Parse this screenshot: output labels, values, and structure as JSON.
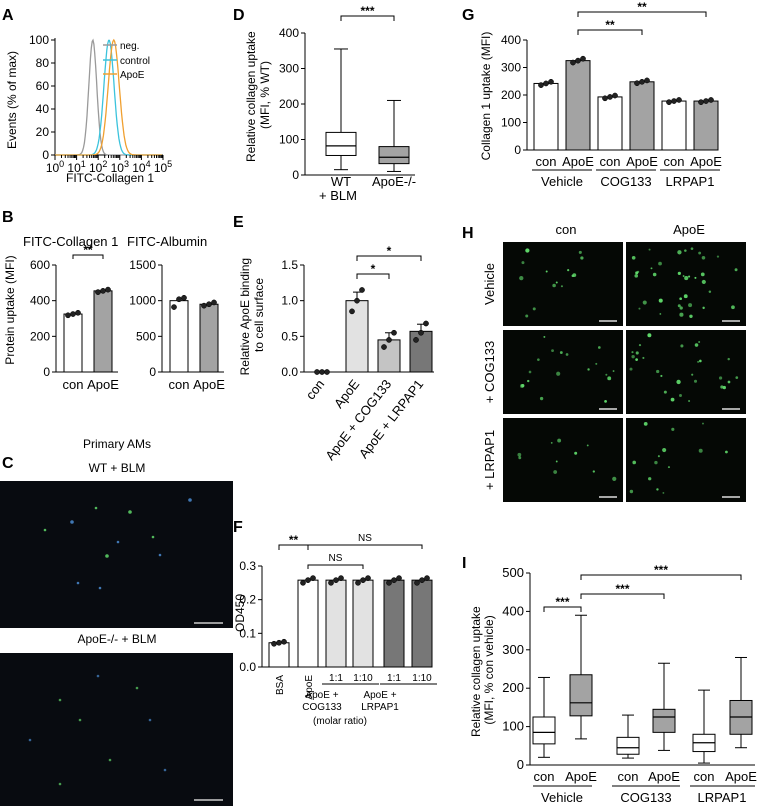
{
  "chart_data": [
    {
      "panel": "A",
      "type": "line",
      "xlabel": "FITC-Collagen 1",
      "ylabel": "Events (% of max)",
      "x_scale": "log",
      "x_ticks": [
        "10^0",
        "10^1",
        "10^2",
        "10^3",
        "10^4",
        "10^5"
      ],
      "y_ticks": [
        0,
        20,
        40,
        60,
        80,
        100
      ],
      "legend": [
        "neg.",
        "control",
        "ApoE"
      ],
      "series": [
        {
          "name": "neg.",
          "color": "#9a9a9a",
          "peak_log10": 1.75,
          "width": 0.26
        },
        {
          "name": "control",
          "color": "#3cc3dc",
          "peak_log10": 2.5,
          "width": 0.33
        },
        {
          "name": "ApoE",
          "color": "#f0a030",
          "peak_log10": 2.72,
          "width": 0.36
        }
      ]
    },
    {
      "panel": "B",
      "type": "bar",
      "ylabel": "Protein uptake (MFI)",
      "subcharts": [
        {
          "title": "FITC-Collagen 1",
          "categories": [
            "con",
            "ApoE"
          ],
          "values": [
            325,
            455
          ],
          "points": [
            [
              318,
              325,
              332
            ],
            [
              448,
              455,
              462
            ]
          ],
          "ylim": [
            0,
            600
          ],
          "y_ticks": [
            0,
            200,
            400,
            600
          ],
          "significance": [
            {
              "pair": [
                0,
                1
              ],
              "label": "**"
            }
          ]
        },
        {
          "title": "FITC-Albumin",
          "categories": [
            "con",
            "ApoE"
          ],
          "values": [
            1000,
            950
          ],
          "points": [
            [
              910,
              1020,
              1040
            ],
            [
              930,
              950,
              975
            ]
          ],
          "ylim": [
            0,
            1500
          ],
          "y_ticks": [
            0,
            500,
            1000,
            1500
          ]
        }
      ]
    },
    {
      "panel": "C",
      "type": "image",
      "title": "Primary AMs",
      "images": [
        "WT + BLM",
        "ApoE-/- + BLM"
      ]
    },
    {
      "panel": "D",
      "type": "box",
      "ylabel": "Relative collagen uptake (MFI, % WT)",
      "categories": [
        "WT",
        "ApoE-/-"
      ],
      "xlabel": "+ BLM",
      "boxes": [
        {
          "min": 15,
          "q1": 55,
          "median": 82,
          "q3": 120,
          "max": 355
        },
        {
          "min": 10,
          "q1": 32,
          "median": 50,
          "q3": 80,
          "max": 210
        }
      ],
      "ylim": [
        0,
        400
      ],
      "y_ticks": [
        0,
        100,
        200,
        300,
        400
      ],
      "significance": [
        {
          "pair": [
            0,
            1
          ],
          "label": "***"
        }
      ]
    },
    {
      "panel": "E",
      "type": "bar",
      "ylabel": "Relative ApoE binding to cell surface",
      "categories": [
        "con",
        "ApoE",
        "ApoE + COG133",
        "ApoE + LRPAP1"
      ],
      "values": [
        0.0,
        1.0,
        0.45,
        0.57
      ],
      "errors": [
        0.0,
        0.12,
        0.1,
        0.1
      ],
      "points": [
        [
          0,
          0,
          0
        ],
        [
          0.85,
          1.0,
          1.15
        ],
        [
          0.35,
          0.45,
          0.55
        ],
        [
          0.45,
          0.55,
          0.68
        ]
      ],
      "ylim": [
        0,
        1.5
      ],
      "y_ticks": [
        "0.0",
        "0.5",
        "1.0",
        "1.5"
      ],
      "significance": [
        {
          "pair": [
            1,
            2
          ],
          "label": "*"
        },
        {
          "pair": [
            1,
            3
          ],
          "label": "*"
        }
      ]
    },
    {
      "panel": "F",
      "type": "bar",
      "ylabel": "OD450",
      "categories": [
        "BSA",
        "ApoE",
        "1:1",
        "1:10",
        "1:1",
        "1:10"
      ],
      "group_labels": [
        "ApoE + COG133",
        "ApoE + LRPAP1"
      ],
      "ratio_note": "(molar ratio)",
      "values": [
        0.072,
        0.258,
        0.258,
        0.258,
        0.258,
        0.258
      ],
      "points": [
        [
          0.069,
          0.072,
          0.075
        ],
        [
          0.25,
          0.258,
          0.264
        ],
        [
          0.25,
          0.258,
          0.264
        ],
        [
          0.25,
          0.258,
          0.264
        ],
        [
          0.25,
          0.258,
          0.264
        ],
        [
          0.25,
          0.258,
          0.264
        ]
      ],
      "ylim": [
        0,
        0.3
      ],
      "y_ticks": [
        "0.0",
        "0.1",
        "0.2",
        "0.3"
      ],
      "significance": [
        {
          "pair": [
            0,
            1
          ],
          "label": "**"
        },
        {
          "pair": [
            1,
            3
          ],
          "label": "NS"
        },
        {
          "pair": [
            1,
            5
          ],
          "label": "NS"
        }
      ]
    },
    {
      "panel": "G",
      "type": "bar",
      "ylabel": "Collagen 1 uptake (MFI)",
      "categories": [
        "con",
        "ApoE",
        "con",
        "ApoE",
        "con",
        "ApoE"
      ],
      "group_labels": [
        "Vehicle",
        "COG133",
        "LRPAP1"
      ],
      "values": [
        242,
        325,
        193,
        248,
        178,
        178
      ],
      "points": [
        [
          236,
          242,
          248
        ],
        [
          318,
          325,
          332
        ],
        [
          188,
          193,
          198
        ],
        [
          243,
          248,
          253
        ],
        [
          174,
          178,
          182
        ],
        [
          174,
          178,
          182
        ]
      ],
      "ylim": [
        0,
        400
      ],
      "y_ticks": [
        0,
        100,
        200,
        300,
        400
      ],
      "significance": [
        {
          "pair": [
            1,
            3
          ],
          "label": "**"
        },
        {
          "pair": [
            1,
            5
          ],
          "label": "**"
        }
      ]
    },
    {
      "panel": "H",
      "type": "image",
      "columns": [
        "con",
        "ApoE"
      ],
      "rows": [
        "Vehicle",
        "+ COG133",
        "+ LRPAP1"
      ]
    },
    {
      "panel": "I",
      "type": "box",
      "ylabel": "Relative collagen uptake (MFI, % con vehicle)",
      "categories": [
        "con",
        "ApoE",
        "con",
        "ApoE",
        "con",
        "ApoE"
      ],
      "group_labels": [
        "Vehicle",
        "COG133",
        "LRPAP1"
      ],
      "boxes": [
        {
          "min": 20,
          "q1": 55,
          "median": 85,
          "q3": 125,
          "max": 228
        },
        {
          "min": 68,
          "q1": 128,
          "median": 162,
          "q3": 235,
          "max": 390
        },
        {
          "min": 18,
          "q1": 28,
          "median": 45,
          "q3": 72,
          "max": 130
        },
        {
          "min": 38,
          "q1": 85,
          "median": 125,
          "q3": 145,
          "max": 265
        },
        {
          "min": 5,
          "q1": 35,
          "median": 58,
          "q3": 80,
          "max": 195
        },
        {
          "min": 45,
          "q1": 80,
          "median": 125,
          "q3": 168,
          "max": 280
        }
      ],
      "ylim": [
        0,
        500
      ],
      "y_ticks": [
        0,
        100,
        200,
        300,
        400,
        500
      ],
      "significance": [
        {
          "pair": [
            0,
            1
          ],
          "label": "***"
        },
        {
          "pair": [
            1,
            3
          ],
          "label": "***"
        },
        {
          "pair": [
            1,
            5
          ],
          "label": "***"
        }
      ]
    }
  ],
  "colors": {
    "white_bar": "#ffffff",
    "gray_bar": "#a3a3a3",
    "light_bar": "#e2e2e2",
    "mid_bar": "#c4c4c4",
    "dark_bar": "#777777",
    "green_dot": "#5fd86a",
    "blue_dot": "#4a8bd0"
  }
}
